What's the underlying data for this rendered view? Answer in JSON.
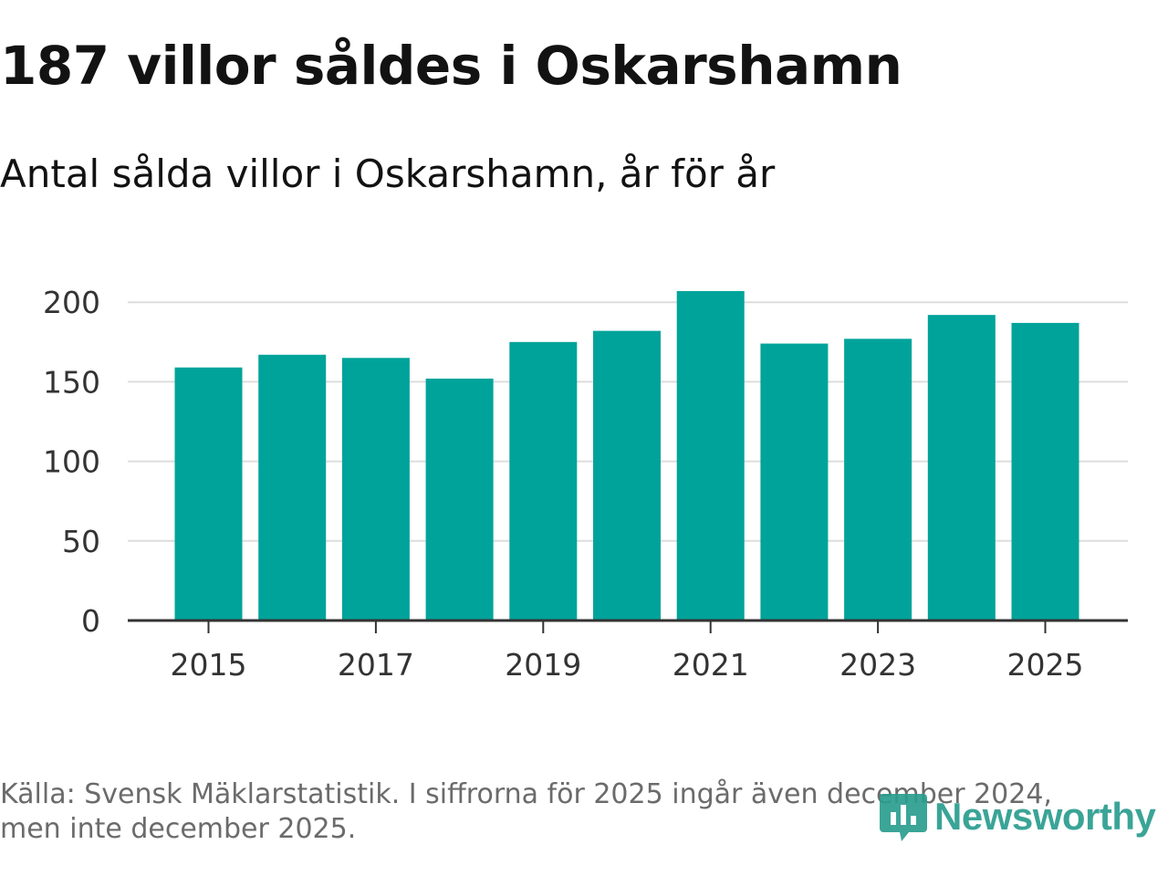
{
  "header": {
    "title": "187 villor såldes i Oskarshamn",
    "subtitle": "Antal sålda villor i Oskarshamn, år för år"
  },
  "footer": {
    "source_line1": "Källa: Svensk Mäklarstatistik. I siffrorna för 2025 ingår även december 2024,",
    "source_line2": "men inte december 2025.",
    "logo_text": "Newsworthy"
  },
  "colors": {
    "bar": "#00a39a",
    "grid": "#dddddd",
    "axis": "#333333",
    "logo": "#2a9d8f"
  },
  "chart_data": {
    "type": "bar",
    "title": "Antal sålda villor i Oskarshamn, år för år",
    "xlabel": "",
    "ylabel": "",
    "categories": [
      "2015",
      "2016",
      "2017",
      "2018",
      "2019",
      "2020",
      "2021",
      "2022",
      "2023",
      "2024",
      "2025"
    ],
    "values": [
      159,
      167,
      165,
      152,
      175,
      182,
      207,
      174,
      177,
      192,
      187
    ],
    "x_tick_labels": [
      "2015",
      "2017",
      "2019",
      "2021",
      "2023",
      "2025"
    ],
    "y_ticks": [
      0,
      50,
      100,
      150,
      200
    ],
    "ylim": [
      0,
      210
    ],
    "grid": true,
    "legend": "none"
  }
}
